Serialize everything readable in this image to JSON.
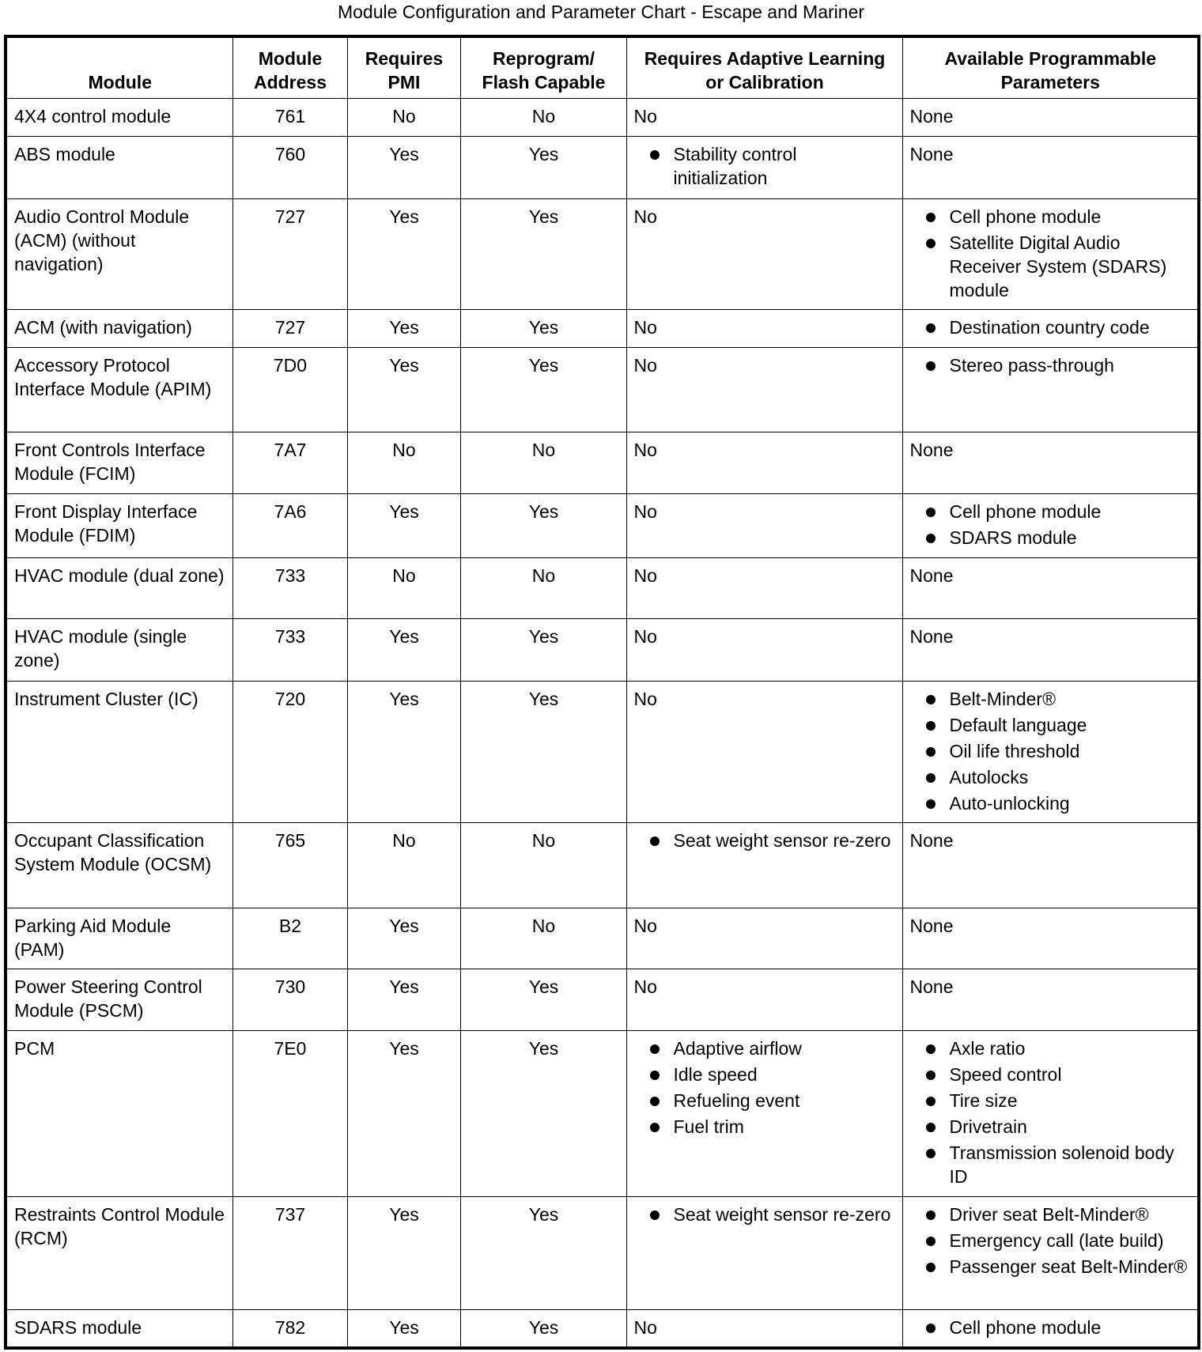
{
  "title": "Module Configuration and Parameter Chart - Escape and Mariner",
  "headers": [
    "Module",
    "Module Address",
    "Requires PMI",
    "Reprogram/ Flash Capable",
    "Requires Adaptive Learning or Calibration",
    "Available Programmable Parameters"
  ],
  "rows": [
    {
      "module": "4X4 control module",
      "address": "761",
      "pmi": "No",
      "flash": "No",
      "adaptive": "No",
      "params": "None"
    },
    {
      "module": "ABS module",
      "address": "760",
      "pmi": "Yes",
      "flash": "Yes",
      "adaptive": [
        "Stability control initialization"
      ],
      "params": "None"
    },
    {
      "module": "Audio Control Module (ACM) (without navigation)",
      "address": "727",
      "pmi": "Yes",
      "flash": "Yes",
      "adaptive": "No",
      "params": [
        "Cell phone module",
        "Satellite Digital Audio Receiver System (SDARS) module"
      ]
    },
    {
      "module": "ACM (with navigation)",
      "address": "727",
      "pmi": "Yes",
      "flash": "Yes",
      "adaptive": "No",
      "params": [
        "Destination country code"
      ]
    },
    {
      "module": "Accessory Protocol Interface Module (APIM)",
      "address": "7D0",
      "pmi": "Yes",
      "flash": "Yes",
      "adaptive": "No",
      "params": [
        "Stereo pass-through"
      ]
    },
    {
      "module": "Front Controls Interface Module (FCIM)",
      "address": "7A7",
      "pmi": "No",
      "flash": "No",
      "adaptive": "No",
      "params": "None"
    },
    {
      "module": "Front Display Interface Module (FDIM)",
      "address": "7A6",
      "pmi": "Yes",
      "flash": "Yes",
      "adaptive": "No",
      "params": [
        "Cell phone module",
        "SDARS module"
      ]
    },
    {
      "module": "HVAC module (dual zone)",
      "address": "733",
      "pmi": "No",
      "flash": "No",
      "adaptive": "No",
      "params": "None"
    },
    {
      "module": "HVAC module (single zone)",
      "address": "733",
      "pmi": "Yes",
      "flash": "Yes",
      "adaptive": "No",
      "params": "None"
    },
    {
      "module": "Instrument Cluster (IC)",
      "address": "720",
      "pmi": "Yes",
      "flash": "Yes",
      "adaptive": "No",
      "params": [
        "Belt-Minder®",
        "Default language",
        "Oil life threshold",
        "Autolocks",
        "Auto-unlocking"
      ]
    },
    {
      "module": "Occupant Classification System Module (OCSM)",
      "address": "765",
      "pmi": "No",
      "flash": "No",
      "adaptive": [
        "Seat weight sensor re-zero"
      ],
      "params": "None"
    },
    {
      "module": "Parking Aid Module (PAM)",
      "address": "B2",
      "pmi": "Yes",
      "flash": "No",
      "adaptive": "No",
      "params": "None"
    },
    {
      "module": "Power Steering Control Module (PSCM)",
      "address": "730",
      "pmi": "Yes",
      "flash": "Yes",
      "adaptive": "No",
      "params": "None"
    },
    {
      "module": "PCM",
      "address": "7E0",
      "pmi": "Yes",
      "flash": "Yes",
      "adaptive": [
        "Adaptive airflow",
        "Idle speed",
        "Refueling event",
        "Fuel trim"
      ],
      "params": [
        "Axle ratio",
        "Speed control",
        "Tire size",
        "Drivetrain",
        "Transmission solenoid body ID"
      ]
    },
    {
      "module": "Restraints Control Module (RCM)",
      "address": "737",
      "pmi": "Yes",
      "flash": "Yes",
      "adaptive": [
        "Seat weight sensor re-zero"
      ],
      "params": [
        "Driver seat Belt-Minder®",
        "Emergency call (late build)",
        "Passenger seat Belt-Minder®"
      ]
    },
    {
      "module": "SDARS module",
      "address": "782",
      "pmi": "Yes",
      "flash": "Yes",
      "adaptive": "No",
      "params": [
        "Cell phone module"
      ]
    }
  ]
}
